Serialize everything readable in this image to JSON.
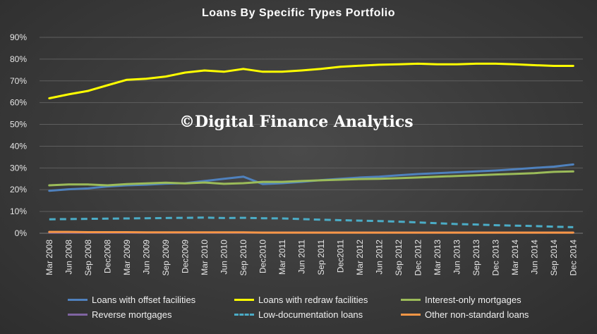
{
  "chart_data": {
    "type": "line",
    "title": "Loans  By  Specific  Types  Portfolio",
    "watermark": "©Digital Finance Analytics",
    "categories": [
      "Mar 2008",
      "Jun 2008",
      "Sep 2008",
      "Dec2008",
      "Mar 2009",
      "Jun 2009",
      "Sep 2009",
      "Dec2009",
      "Mar 2010",
      "Jun 2010",
      "Sep 2010",
      "Dec2010",
      "Mar 2011",
      "Jun 2011",
      "Sep 2011",
      "Dec2011",
      "Mar 2012",
      "Jun 2012",
      "Sep 2012",
      "Dec 2012",
      "Mar 2013",
      "Jun 2013",
      "Sep 2013",
      "Dec 2013",
      "Mar 2014",
      "Jun 2014",
      "Sep 2014",
      "Dec 2014"
    ],
    "yticks": [
      "0%",
      "10%",
      "20%",
      "30%",
      "40%",
      "50%",
      "60%",
      "70%",
      "80%",
      "90%"
    ],
    "ylim": [
      0,
      90
    ],
    "grid": true,
    "legend_position": "bottom",
    "series": [
      {
        "name": "Loans with offset facilities",
        "color": "#4f81bd",
        "dash": false,
        "values": [
          19.5,
          20.2,
          20.6,
          21.5,
          22.0,
          22.3,
          22.8,
          23.0,
          24.0,
          25.0,
          26.0,
          22.6,
          23.0,
          23.6,
          24.4,
          25.0,
          25.6,
          26.0,
          26.6,
          27.2,
          27.6,
          28.0,
          28.4,
          28.8,
          29.4,
          30.0,
          30.6,
          31.6
        ]
      },
      {
        "name": "Loans with redraw facilities",
        "color": "#ffff00",
        "dash": false,
        "values": [
          62.0,
          63.8,
          65.4,
          68.0,
          70.5,
          71.0,
          72.0,
          73.8,
          74.8,
          74.2,
          75.5,
          74.2,
          74.2,
          74.8,
          75.5,
          76.5,
          77.0,
          77.4,
          77.6,
          77.9,
          77.6,
          77.6,
          77.9,
          77.9,
          77.6,
          77.2,
          76.9,
          76.9
        ]
      },
      {
        "name": "Interest-only mortgages",
        "color": "#9bbb59",
        "dash": false,
        "values": [
          22.0,
          22.4,
          22.4,
          22.0,
          22.6,
          22.9,
          23.2,
          22.9,
          23.3,
          22.7,
          23.0,
          23.6,
          23.6,
          24.0,
          24.3,
          24.6,
          24.9,
          25.0,
          25.3,
          25.6,
          26.0,
          26.3,
          26.6,
          27.0,
          27.3,
          27.6,
          28.2,
          28.4
        ]
      },
      {
        "name": "Reverse mortgages",
        "color": "#8064a2",
        "dash": false,
        "values": [
          0.3,
          0.3,
          0.3,
          0.3,
          0.3,
          0.3,
          0.3,
          0.3,
          0.3,
          0.3,
          0.3,
          0.3,
          0.3,
          0.3,
          0.3,
          0.3,
          0.3,
          0.3,
          0.3,
          0.3,
          0.3,
          0.3,
          0.3,
          0.3,
          0.3,
          0.3,
          0.3,
          0.3
        ]
      },
      {
        "name": "Low-documentation loans",
        "color": "#4bacc6",
        "dash": true,
        "values": [
          6.4,
          6.5,
          6.6,
          6.7,
          6.8,
          6.9,
          7.0,
          7.1,
          7.2,
          7.0,
          7.1,
          6.9,
          6.8,
          6.5,
          6.2,
          6.0,
          5.8,
          5.6,
          5.3,
          5.0,
          4.6,
          4.2,
          4.0,
          3.7,
          3.5,
          3.3,
          3.0,
          2.8
        ]
      },
      {
        "name": "Other non-standard loans",
        "color": "#f79646",
        "dash": false,
        "values": [
          0.6,
          0.6,
          0.5,
          0.5,
          0.5,
          0.4,
          0.4,
          0.4,
          0.4,
          0.4,
          0.4,
          0.3,
          0.3,
          0.3,
          0.3,
          0.3,
          0.3,
          0.3,
          0.3,
          0.3,
          0.3,
          0.3,
          0.3,
          0.3,
          0.3,
          0.3,
          0.3,
          0.3
        ]
      }
    ]
  }
}
